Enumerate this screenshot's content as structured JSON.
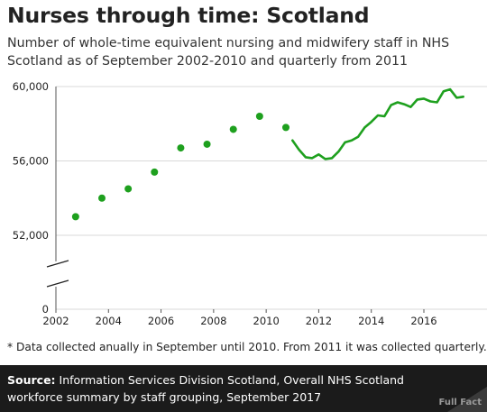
{
  "title": "Nurses through time: Scotland",
  "subtitle": "Number of whole-time equivalent nursing and midwifery staff in NHS Scotland as of September 2002-2010 and quarterly from 2011",
  "footnote": "* Data collected anually in September until 2010. From 2011 it was collected quarterly.",
  "source": {
    "label": "Source:",
    "text": "Information Services Division Scotland, Overall NHS Scotland workforce summary by staff grouping, September 2017"
  },
  "brand": "Full Fact",
  "colors": {
    "series": "#1ea01e",
    "grid": "#d9d9d9",
    "source_bg": "#1b1b1b"
  },
  "chart_data": {
    "type": "scatter+line",
    "x_ticks": [
      "2002",
      "2004",
      "2006",
      "2008",
      "2010",
      "2012",
      "2014",
      "2016"
    ],
    "y_ticks": [
      {
        "value": 60000,
        "label": "60,000"
      },
      {
        "value": 56000,
        "label": "56,000"
      },
      {
        "value": 52000,
        "label": "52,000"
      },
      {
        "value": 0,
        "label": "0"
      }
    ],
    "axis_break": true,
    "xlim": [
      2002,
      2017.75
    ],
    "grid": "horizontal",
    "annual_points": [
      {
        "x": 2002.75,
        "y": 53000
      },
      {
        "x": 2003.75,
        "y": 54000
      },
      {
        "x": 2004.75,
        "y": 54500
      },
      {
        "x": 2005.75,
        "y": 55400
      },
      {
        "x": 2006.75,
        "y": 56700
      },
      {
        "x": 2007.75,
        "y": 56900
      },
      {
        "x": 2008.75,
        "y": 57700
      },
      {
        "x": 2009.75,
        "y": 58400
      },
      {
        "x": 2010.75,
        "y": 57800
      }
    ],
    "quarterly_line": [
      {
        "x": 2011.0,
        "y": 57100
      },
      {
        "x": 2011.25,
        "y": 56600
      },
      {
        "x": 2011.5,
        "y": 56200
      },
      {
        "x": 2011.75,
        "y": 56150
      },
      {
        "x": 2012.0,
        "y": 56350
      },
      {
        "x": 2012.25,
        "y": 56100
      },
      {
        "x": 2012.5,
        "y": 56150
      },
      {
        "x": 2012.75,
        "y": 56500
      },
      {
        "x": 2013.0,
        "y": 57000
      },
      {
        "x": 2013.25,
        "y": 57100
      },
      {
        "x": 2013.5,
        "y": 57300
      },
      {
        "x": 2013.75,
        "y": 57800
      },
      {
        "x": 2014.0,
        "y": 58100
      },
      {
        "x": 2014.25,
        "y": 58450
      },
      {
        "x": 2014.5,
        "y": 58400
      },
      {
        "x": 2014.75,
        "y": 59000
      },
      {
        "x": 2015.0,
        "y": 59150
      },
      {
        "x": 2015.25,
        "y": 59050
      },
      {
        "x": 2015.5,
        "y": 58900
      },
      {
        "x": 2015.75,
        "y": 59300
      },
      {
        "x": 2016.0,
        "y": 59350
      },
      {
        "x": 2016.25,
        "y": 59200
      },
      {
        "x": 2016.5,
        "y": 59150
      },
      {
        "x": 2016.75,
        "y": 59750
      },
      {
        "x": 2017.0,
        "y": 59850
      },
      {
        "x": 2017.25,
        "y": 59400
      },
      {
        "x": 2017.5,
        "y": 59450
      }
    ]
  }
}
